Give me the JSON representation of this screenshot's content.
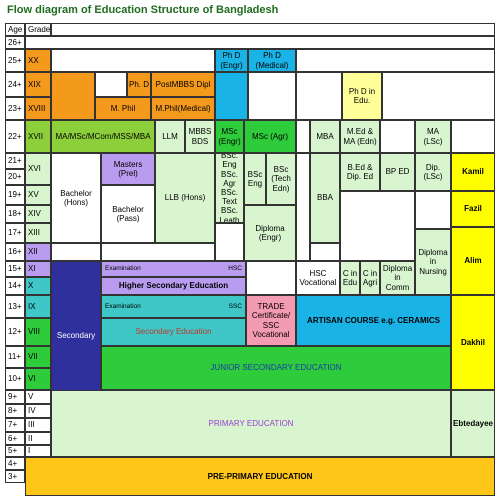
{
  "title": "Flow diagram of Education Structure of Bangladesh",
  "headers": {
    "age": "Age",
    "grade": "Grade"
  },
  "ages": [
    "26+",
    "25+",
    "24+",
    "23+",
    "22+",
    "21+",
    "20+",
    "19+",
    "18+",
    "17+",
    "16+",
    "15+",
    "14+",
    "13+",
    "12+",
    "11+",
    "10+",
    "9+",
    "8+",
    "7+",
    "6+",
    "5+",
    "4+",
    "3+"
  ],
  "grades": [
    "XX",
    "XIX",
    "XVIII",
    "XVII",
    "XVI",
    "XV",
    "XIV",
    "XIII",
    "XII",
    "XI",
    "X",
    "IX",
    "VIII",
    "VII",
    "VI",
    "V",
    "IV",
    "III",
    "II",
    "I"
  ],
  "blocks": {
    "phd_engr": "Ph D (Engr)",
    "phd_medical": "Ph D (Medical)",
    "phd": "Ph. D",
    "postmbbs": "PostMBBS Dipl",
    "phd_edu": "Ph D in Edu.",
    "mphil": "M. Phil",
    "mphil_medical": "M.Phil(Medical)",
    "ma_msc": "MA/MSc/MCom/MSS/MBA",
    "llm": "LLM",
    "mbbs": "MBBS BDS",
    "msc_engr": "MSc (Engr)",
    "msc_agr": "MSc (Agr)",
    "mba": "MBA",
    "med": "M.Ed & MA (Edn)",
    "ma_lsc": "MA (LSc)",
    "masters_prel": "Masters (Prel)",
    "bachelor_hons": "Bachelor (Hons)",
    "bachelor_pass": "Bachelor (Pass)",
    "llb": "LLB (Hons)",
    "bsc_list": "BSc. Eng BSc. Agr BSc. Text BSc. Leath",
    "bsc_eng": "BSc Eng",
    "bsc_tech": "BSc (Tech Edn)",
    "bba": "BBA",
    "bed": "B.Ed & Dip. Ed",
    "bped": "BP ED",
    "dip_lsc": "Dip. (LSc)",
    "kamil": "Kamil",
    "fazil": "Fazil",
    "alim": "Alim",
    "dakhil": "Dakhil",
    "ebtedayee": "Ebtedayee",
    "diploma_engr": "Diploma (Engr)",
    "hsc_vocational": "HSC Vocational",
    "c_edu": "C in Edu",
    "c_agri": "C in Agri",
    "dip_comm": "Diploma in Comm",
    "dip_nursing": "Diploma in Nursing",
    "examination": "Examination",
    "hsc": "HSC",
    "ssc": "SSC",
    "higher_secondary": "Higher Secondary Education",
    "secondary": "Secondary",
    "secondary_education": "Secondary Education",
    "trade": "TRADE Certificate/ SSC Vocational",
    "artisan": "ARTISAN COURSE e.g. CERAMICS",
    "junior_secondary": "JUNIOR SECONDARY EDUCATION",
    "primary": "PRIMARY EDUCATION",
    "pre_primary": "PRE-PRIMARY EDUCATION"
  },
  "colors": {
    "orange": "#f39a1d",
    "cyan": "#1ab3e6",
    "violet": "#b99cf0",
    "light_violet": "#c7b4f3",
    "green": "#2ecc3a",
    "pale_green": "#d8f5d0",
    "yellow": "#ffff00",
    "gold": "#ffc61a",
    "navy": "#2f2f9e",
    "teal": "#3fc6c6",
    "pink": "#f39bb0",
    "light_yellow": "#ffff99",
    "olive_green": "#8ccf3a"
  }
}
